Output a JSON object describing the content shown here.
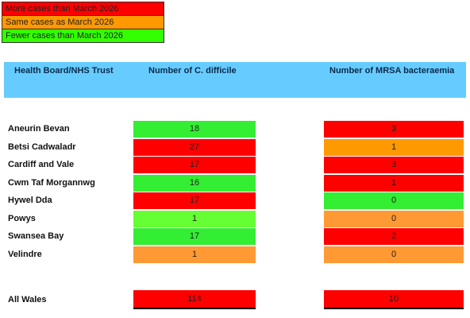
{
  "legend": [
    {
      "label": "More cases than March 2026",
      "color": "#ff0000"
    },
    {
      "label": "Same cases as March 2026",
      "color": "#ff9900"
    },
    {
      "label": "Fewer cases than March 2026",
      "color": "#33ff00"
    }
  ],
  "table": {
    "header": [
      "Health Board/NHS Trust",
      "Number of C. difficile",
      "Number of MRSA bacteraemia"
    ],
    "header_color": "#66ccff",
    "rows": [
      {
        "name": "Aneurin Bevan",
        "cells": [
          {
            "value": 18,
            "color": "#33ee33"
          },
          {
            "value": 3,
            "color": "#ff0000"
          }
        ]
      },
      {
        "name": "Betsi Cadwaladr",
        "cells": [
          {
            "value": 27,
            "color": "#ff0000"
          },
          {
            "value": 1,
            "color": "#ff9900"
          }
        ]
      },
      {
        "name": "Cardiff and Vale",
        "cells": [
          {
            "value": 17,
            "color": "#ff0000"
          },
          {
            "value": 3,
            "color": "#ff0000"
          }
        ]
      },
      {
        "name": "Cwm Taf Morgannwg",
        "cells": [
          {
            "value": 16,
            "color": "#33ee33"
          },
          {
            "value": 1,
            "color": "#ff0000"
          }
        ]
      },
      {
        "name": "Hywel Dda",
        "cells": [
          {
            "value": 17,
            "color": "#ff0000"
          },
          {
            "value": 0,
            "color": "#33ee33"
          }
        ]
      },
      {
        "name": "Powys",
        "cells": [
          {
            "value": 1,
            "color": "#66ff33"
          },
          {
            "value": 0,
            "color": "#ff9933"
          }
        ]
      },
      {
        "name": "Swansea Bay",
        "cells": [
          {
            "value": 17,
            "color": "#33ee33"
          },
          {
            "value": 2,
            "color": "#ff0000"
          }
        ]
      },
      {
        "name": "Velindre",
        "cells": [
          {
            "value": 1,
            "color": "#ff9933"
          },
          {
            "value": 0,
            "color": "#ff9933"
          }
        ]
      }
    ],
    "total": {
      "name": "All Wales",
      "cells": [
        {
          "value": 114,
          "color": "#ff0000"
        },
        {
          "value": 10,
          "color": "#ff0000"
        }
      ]
    }
  }
}
